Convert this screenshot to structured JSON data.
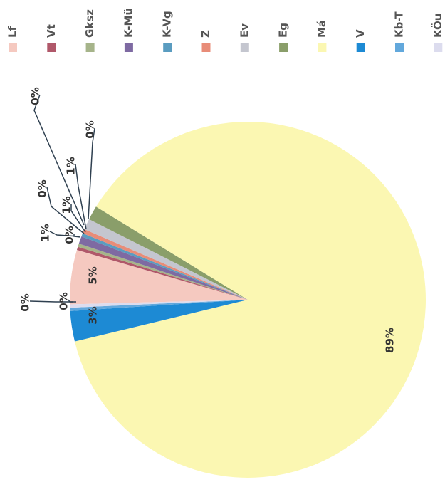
{
  "chart_data": {
    "type": "pie",
    "title": "",
    "orientation": "rotated-90-clockwise",
    "legend_position": "top",
    "slices": [
      {
        "name": "Lf",
        "value": 5,
        "label": "5%",
        "color": "#f5c9c0"
      },
      {
        "name": "Vt",
        "value": 0.3,
        "label": "0%",
        "color": "#b0586a"
      },
      {
        "name": "Gksz",
        "value": 0.3,
        "label": "0%",
        "color": "#a6b48a"
      },
      {
        "name": "K-Mü",
        "value": 0.7,
        "label": "1%",
        "color": "#7e6aa2"
      },
      {
        "name": "K-Vg",
        "value": 0.3,
        "label": "0%",
        "color": "#5a9cc0"
      },
      {
        "name": "Z",
        "value": 0.4,
        "label": "0%",
        "color": "#e88c78"
      },
      {
        "name": "Ev",
        "value": 1,
        "label": "1%",
        "color": "#c4c6cf"
      },
      {
        "name": "Eg",
        "value": 1.3,
        "label": "1%",
        "color": "#8a9e6a"
      },
      {
        "name": "Má",
        "value": 88.7,
        "label": "89%",
        "color": "#fbf7b2"
      },
      {
        "name": "V",
        "value": 2.8,
        "label": "3%",
        "color": "#1d8ad4"
      },
      {
        "name": "Kb-T",
        "value": 0.3,
        "label": "0%",
        "color": "#62a8dc"
      },
      {
        "name": "KÖu",
        "value": 0.3,
        "label": "0%",
        "color": "#dcdcee"
      }
    ]
  }
}
